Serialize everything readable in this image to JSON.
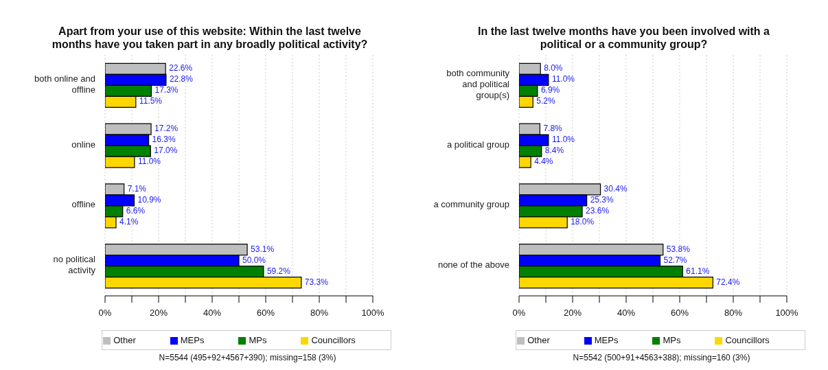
{
  "chart_data": [
    {
      "type": "bar",
      "orientation": "horizontal",
      "title": "Apart from your use of this website: Within the last twelve months have you taken part in any broadly political activity?",
      "categories": [
        "both online and offline",
        "online",
        "offline",
        "no political activity"
      ],
      "series": [
        {
          "name": "Other",
          "color": "#bebebe",
          "values": [
            22.6,
            17.2,
            7.1,
            53.1
          ],
          "value_labels": [
            "22.6%",
            "17.2%",
            "7.1%",
            "53.1%"
          ]
        },
        {
          "name": "MEPs",
          "color": "#0000ff",
          "values": [
            22.8,
            16.3,
            10.9,
            50.0
          ],
          "value_labels": [
            "22.8%",
            "16.3%",
            "10.9%",
            "50.0%"
          ]
        },
        {
          "name": "MPs",
          "color": "#008000",
          "values": [
            17.3,
            17.0,
            6.6,
            59.2
          ],
          "value_labels": [
            "17.3%",
            "17.0%",
            "6.6%",
            "59.2%"
          ]
        },
        {
          "name": "Councillors",
          "color": "#ffd700",
          "values": [
            11.5,
            11.0,
            4.1,
            73.3
          ],
          "value_labels": [
            "11.5%",
            "11.0%",
            "4.1%",
            "73.3%"
          ]
        }
      ],
      "xlim": [
        0,
        100
      ],
      "xticks": [
        {
          "value": 0,
          "label": "0%"
        },
        {
          "value": 10,
          "label": null
        },
        {
          "value": 20,
          "label": "20%"
        },
        {
          "value": 30,
          "label": null
        },
        {
          "value": 40,
          "label": "40%"
        },
        {
          "value": 50,
          "label": null
        },
        {
          "value": 60,
          "label": "60%"
        },
        {
          "value": 70,
          "label": null
        },
        {
          "value": 80,
          "label": "80%"
        },
        {
          "value": 90,
          "label": null
        },
        {
          "value": 100,
          "label": "100%"
        }
      ],
      "grid": "x",
      "legend": "bottom",
      "annotations": [
        "N=5544 (495+92+4567+390); missing=158 (3%)"
      ]
    },
    {
      "type": "bar",
      "orientation": "horizontal",
      "title": "In the last twelve months have you been involved with a political or a community group?",
      "categories": [
        "both community and political group(s)",
        "a political group",
        "a community group",
        "none of the above"
      ],
      "series": [
        {
          "name": "Other",
          "color": "#bebebe",
          "values": [
            8.0,
            7.8,
            30.4,
            53.8
          ],
          "value_labels": [
            "8.0%",
            "7.8%",
            "30.4%",
            "53.8%"
          ]
        },
        {
          "name": "MEPs",
          "color": "#0000ff",
          "values": [
            11.0,
            11.0,
            25.3,
            52.7
          ],
          "value_labels": [
            "11.0%",
            "11.0%",
            "25.3%",
            "52.7%"
          ]
        },
        {
          "name": "MPs",
          "color": "#008000",
          "values": [
            6.9,
            8.4,
            23.6,
            61.1
          ],
          "value_labels": [
            "6.9%",
            "8.4%",
            "23.6%",
            "61.1%"
          ]
        },
        {
          "name": "Councillors",
          "color": "#ffd700",
          "values": [
            5.2,
            4.4,
            18.0,
            72.4
          ],
          "value_labels": [
            "5.2%",
            "4.4%",
            "18.0%",
            "72.4%"
          ]
        }
      ],
      "xlim": [
        0,
        100
      ],
      "xticks": [
        {
          "value": 0,
          "label": "0%"
        },
        {
          "value": 10,
          "label": null
        },
        {
          "value": 20,
          "label": "20%"
        },
        {
          "value": 30,
          "label": null
        },
        {
          "value": 40,
          "label": "40%"
        },
        {
          "value": 50,
          "label": null
        },
        {
          "value": 60,
          "label": "60%"
        },
        {
          "value": 70,
          "label": null
        },
        {
          "value": 80,
          "label": "80%"
        },
        {
          "value": 90,
          "label": null
        },
        {
          "value": 100,
          "label": "100%"
        }
      ],
      "grid": "x",
      "legend": "bottom",
      "annotations": [
        "N=5542 (500+91+4563+388); missing=160 (3%)"
      ]
    }
  ]
}
